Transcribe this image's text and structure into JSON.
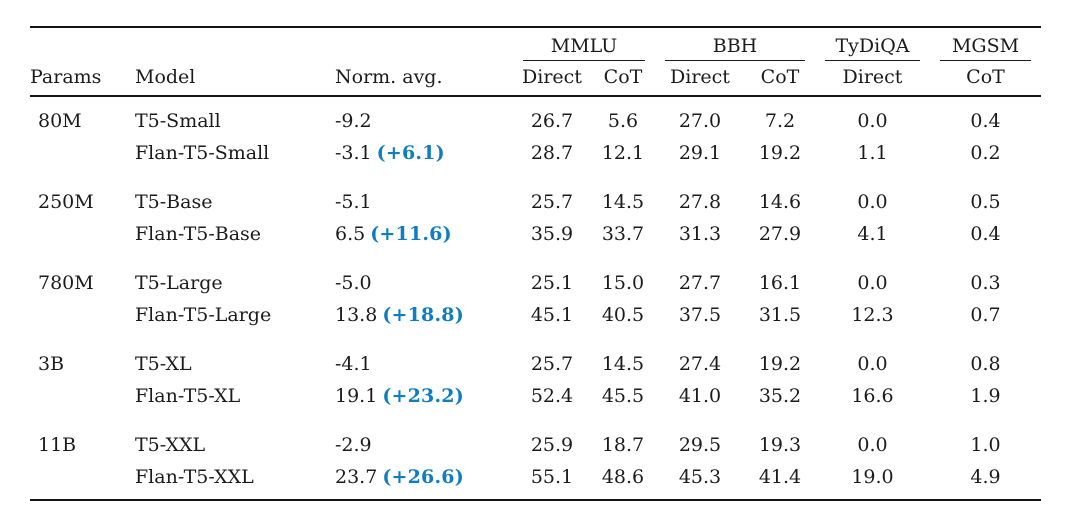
{
  "colors": {
    "accent_blue": "#0f7dc2",
    "text": "#1b1b1b",
    "rule": "#141414"
  },
  "table": {
    "column_headers": {
      "params": "Params",
      "model": "Model",
      "norm_avg": "Norm. avg."
    },
    "benchmark_groups": [
      {
        "label": "MMLU",
        "subcols": [
          "Direct",
          "CoT"
        ]
      },
      {
        "label": "BBH",
        "subcols": [
          "Direct",
          "CoT"
        ]
      },
      {
        "label": "TyDiQA",
        "subcols": [
          "Direct"
        ]
      },
      {
        "label": "MGSM",
        "subcols": [
          "CoT"
        ]
      }
    ],
    "groups": [
      {
        "params": "80M",
        "rows": [
          {
            "model": "T5-Small",
            "norm_avg": "-9.2",
            "delta": "",
            "mmlu_direct": "26.7",
            "mmlu_cot": "5.6",
            "bbh_direct": "27.0",
            "bbh_cot": "7.2",
            "tydiqa_direct": "0.0",
            "mgsm_cot": "0.4"
          },
          {
            "model": "Flan-T5-Small",
            "norm_avg": "-3.1",
            "delta": "(+6.1)",
            "mmlu_direct": "28.7",
            "mmlu_cot": "12.1",
            "bbh_direct": "29.1",
            "bbh_cot": "19.2",
            "tydiqa_direct": "1.1",
            "mgsm_cot": "0.2"
          }
        ]
      },
      {
        "params": "250M",
        "rows": [
          {
            "model": "T5-Base",
            "norm_avg": "-5.1",
            "delta": "",
            "mmlu_direct": "25.7",
            "mmlu_cot": "14.5",
            "bbh_direct": "27.8",
            "bbh_cot": "14.6",
            "tydiqa_direct": "0.0",
            "mgsm_cot": "0.5"
          },
          {
            "model": "Flan-T5-Base",
            "norm_avg": "6.5",
            "delta": "(+11.6)",
            "mmlu_direct": "35.9",
            "mmlu_cot": "33.7",
            "bbh_direct": "31.3",
            "bbh_cot": "27.9",
            "tydiqa_direct": "4.1",
            "mgsm_cot": "0.4"
          }
        ]
      },
      {
        "params": "780M",
        "rows": [
          {
            "model": "T5-Large",
            "norm_avg": "-5.0",
            "delta": "",
            "mmlu_direct": "25.1",
            "mmlu_cot": "15.0",
            "bbh_direct": "27.7",
            "bbh_cot": "16.1",
            "tydiqa_direct": "0.0",
            "mgsm_cot": "0.3"
          },
          {
            "model": "Flan-T5-Large",
            "norm_avg": "13.8",
            "delta": "(+18.8)",
            "mmlu_direct": "45.1",
            "mmlu_cot": "40.5",
            "bbh_direct": "37.5",
            "bbh_cot": "31.5",
            "tydiqa_direct": "12.3",
            "mgsm_cot": "0.7"
          }
        ]
      },
      {
        "params": "3B",
        "rows": [
          {
            "model": "T5-XL",
            "norm_avg": "-4.1",
            "delta": "",
            "mmlu_direct": "25.7",
            "mmlu_cot": "14.5",
            "bbh_direct": "27.4",
            "bbh_cot": "19.2",
            "tydiqa_direct": "0.0",
            "mgsm_cot": "0.8"
          },
          {
            "model": "Flan-T5-XL",
            "norm_avg": "19.1",
            "delta": "(+23.2)",
            "mmlu_direct": "52.4",
            "mmlu_cot": "45.5",
            "bbh_direct": "41.0",
            "bbh_cot": "35.2",
            "tydiqa_direct": "16.6",
            "mgsm_cot": "1.9"
          }
        ]
      },
      {
        "params": "11B",
        "rows": [
          {
            "model": "T5-XXL",
            "norm_avg": "-2.9",
            "delta": "",
            "mmlu_direct": "25.9",
            "mmlu_cot": "18.7",
            "bbh_direct": "29.5",
            "bbh_cot": "19.3",
            "tydiqa_direct": "0.0",
            "mgsm_cot": "1.0"
          },
          {
            "model": "Flan-T5-XXL",
            "norm_avg": "23.7",
            "delta": "(+26.6)",
            "mmlu_direct": "55.1",
            "mmlu_cot": "48.6",
            "bbh_direct": "45.3",
            "bbh_cot": "41.4",
            "tydiqa_direct": "19.0",
            "mgsm_cot": "4.9"
          }
        ]
      }
    ]
  }
}
